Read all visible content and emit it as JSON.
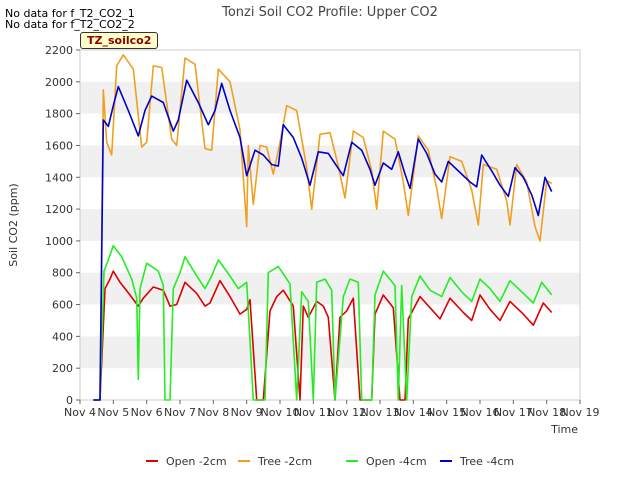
{
  "notices": [
    "No data for f_T2_CO2_1",
    "No data for f_T2_CO2_2"
  ],
  "tag_label": "TZ_soilco2",
  "chart_data": {
    "type": "line",
    "title": "Tonzi Soil CO2 Profile: Upper CO2",
    "xlabel": "Time",
    "ylabel": "Soil CO2 (ppm)",
    "x_tick_labels": [
      "Nov 4",
      "Nov 5",
      "Nov 6",
      "Nov 7",
      "Nov 8",
      "Nov 9",
      "Nov 10",
      "Nov 11",
      "Nov 12",
      "Nov 13",
      "Nov 14",
      "Nov 15",
      "Nov 16",
      "Nov 17",
      "Nov 18",
      "Nov 19"
    ],
    "xlim": [
      4,
      19
    ],
    "ylim": [
      0,
      2200
    ],
    "y_ticks": [
      0,
      200,
      400,
      600,
      800,
      1000,
      1200,
      1400,
      1600,
      1800,
      2000,
      2200
    ],
    "grid": true,
    "legend_position": "bottom",
    "x_unit": "day of November",
    "series": [
      {
        "name": "Open -2cm",
        "color": "#dd0000",
        "points": [
          [
            4.4,
            0
          ],
          [
            4.6,
            0
          ],
          [
            4.75,
            700
          ],
          [
            4.9,
            760
          ],
          [
            5.0,
            810
          ],
          [
            5.2,
            740
          ],
          [
            5.5,
            660
          ],
          [
            5.75,
            590
          ],
          [
            5.9,
            640
          ],
          [
            6.2,
            710
          ],
          [
            6.5,
            690
          ],
          [
            6.7,
            590
          ],
          [
            6.9,
            600
          ],
          [
            7.15,
            740
          ],
          [
            7.5,
            670
          ],
          [
            7.75,
            590
          ],
          [
            7.9,
            610
          ],
          [
            8.2,
            750
          ],
          [
            8.5,
            650
          ],
          [
            8.8,
            540
          ],
          [
            9.0,
            570
          ],
          [
            9.1,
            630
          ],
          [
            9.3,
            0
          ],
          [
            9.5,
            0
          ],
          [
            9.7,
            560
          ],
          [
            9.9,
            650
          ],
          [
            10.1,
            690
          ],
          [
            10.4,
            590
          ],
          [
            10.6,
            0
          ],
          [
            10.7,
            590
          ],
          [
            10.85,
            520
          ],
          [
            11.1,
            620
          ],
          [
            11.3,
            590
          ],
          [
            11.45,
            520
          ],
          [
            11.65,
            0
          ],
          [
            11.8,
            520
          ],
          [
            12.0,
            560
          ],
          [
            12.2,
            640
          ],
          [
            12.4,
            0
          ],
          [
            12.75,
            0
          ],
          [
            12.85,
            540
          ],
          [
            13.1,
            660
          ],
          [
            13.4,
            580
          ],
          [
            13.6,
            0
          ],
          [
            13.75,
            0
          ],
          [
            13.85,
            510
          ],
          [
            14.2,
            650
          ],
          [
            14.5,
            580
          ],
          [
            14.8,
            510
          ],
          [
            15.1,
            640
          ],
          [
            15.5,
            550
          ],
          [
            15.75,
            500
          ],
          [
            16.0,
            660
          ],
          [
            16.3,
            570
          ],
          [
            16.6,
            500
          ],
          [
            16.9,
            620
          ],
          [
            17.3,
            540
          ],
          [
            17.6,
            470
          ],
          [
            17.9,
            610
          ],
          [
            18.15,
            550
          ]
        ]
      },
      {
        "name": "Tree -2cm",
        "color": "#f0a020",
        "points": [
          [
            4.4,
            0
          ],
          [
            4.6,
            0
          ],
          [
            4.7,
            1950
          ],
          [
            4.8,
            1620
          ],
          [
            4.95,
            1540
          ],
          [
            5.1,
            2100
          ],
          [
            5.3,
            2170
          ],
          [
            5.6,
            2080
          ],
          [
            5.85,
            1590
          ],
          [
            6.0,
            1620
          ],
          [
            6.2,
            2100
          ],
          [
            6.45,
            2090
          ],
          [
            6.75,
            1640
          ],
          [
            6.9,
            1600
          ],
          [
            7.15,
            2150
          ],
          [
            7.45,
            2110
          ],
          [
            7.75,
            1580
          ],
          [
            7.95,
            1570
          ],
          [
            8.15,
            2080
          ],
          [
            8.5,
            2000
          ],
          [
            8.8,
            1700
          ],
          [
            9.0,
            1090
          ],
          [
            9.05,
            1600
          ],
          [
            9.2,
            1230
          ],
          [
            9.4,
            1600
          ],
          [
            9.6,
            1590
          ],
          [
            9.8,
            1420
          ],
          [
            10.0,
            1620
          ],
          [
            10.2,
            1850
          ],
          [
            10.5,
            1820
          ],
          [
            10.8,
            1460
          ],
          [
            10.95,
            1200
          ],
          [
            11.2,
            1670
          ],
          [
            11.5,
            1680
          ],
          [
            11.75,
            1470
          ],
          [
            11.95,
            1270
          ],
          [
            12.2,
            1690
          ],
          [
            12.5,
            1650
          ],
          [
            12.75,
            1440
          ],
          [
            12.9,
            1200
          ],
          [
            13.1,
            1690
          ],
          [
            13.45,
            1640
          ],
          [
            13.7,
            1370
          ],
          [
            13.85,
            1160
          ],
          [
            14.15,
            1660
          ],
          [
            14.45,
            1570
          ],
          [
            14.7,
            1330
          ],
          [
            14.85,
            1140
          ],
          [
            15.1,
            1530
          ],
          [
            15.45,
            1500
          ],
          [
            15.75,
            1320
          ],
          [
            15.95,
            1100
          ],
          [
            16.1,
            1480
          ],
          [
            16.5,
            1450
          ],
          [
            16.8,
            1250
          ],
          [
            16.9,
            1100
          ],
          [
            17.1,
            1480
          ],
          [
            17.4,
            1370
          ],
          [
            17.65,
            1090
          ],
          [
            17.8,
            1000
          ],
          [
            18.0,
            1380
          ],
          [
            18.15,
            1360
          ]
        ]
      },
      {
        "name": "Open -4cm",
        "color": "#22ee22",
        "points": [
          [
            4.4,
            0
          ],
          [
            4.6,
            0
          ],
          [
            4.72,
            810
          ],
          [
            4.85,
            880
          ],
          [
            5.0,
            970
          ],
          [
            5.25,
            900
          ],
          [
            5.55,
            760
          ],
          [
            5.7,
            640
          ],
          [
            5.75,
            130
          ],
          [
            5.8,
            700
          ],
          [
            6.0,
            860
          ],
          [
            6.35,
            810
          ],
          [
            6.5,
            720
          ],
          [
            6.55,
            0
          ],
          [
            6.7,
            0
          ],
          [
            6.8,
            700
          ],
          [
            7.0,
            800
          ],
          [
            7.15,
            900
          ],
          [
            7.5,
            780
          ],
          [
            7.75,
            700
          ],
          [
            7.95,
            780
          ],
          [
            8.15,
            880
          ],
          [
            8.5,
            780
          ],
          [
            8.75,
            700
          ],
          [
            9.0,
            740
          ],
          [
            9.2,
            0
          ],
          [
            9.55,
            0
          ],
          [
            9.65,
            800
          ],
          [
            9.95,
            840
          ],
          [
            10.3,
            730
          ],
          [
            10.5,
            0
          ],
          [
            10.65,
            680
          ],
          [
            10.85,
            620
          ],
          [
            11.0,
            0
          ],
          [
            11.1,
            740
          ],
          [
            11.35,
            760
          ],
          [
            11.55,
            690
          ],
          [
            11.65,
            0
          ],
          [
            11.9,
            650
          ],
          [
            12.1,
            760
          ],
          [
            12.35,
            740
          ],
          [
            12.45,
            0
          ],
          [
            12.75,
            0
          ],
          [
            12.85,
            660
          ],
          [
            13.1,
            810
          ],
          [
            13.45,
            720
          ],
          [
            13.55,
            0
          ],
          [
            13.65,
            720
          ],
          [
            13.8,
            0
          ],
          [
            13.95,
            650
          ],
          [
            14.2,
            780
          ],
          [
            14.5,
            690
          ],
          [
            14.85,
            650
          ],
          [
            15.1,
            770
          ],
          [
            15.45,
            680
          ],
          [
            15.75,
            620
          ],
          [
            16.0,
            760
          ],
          [
            16.3,
            700
          ],
          [
            16.6,
            620
          ],
          [
            16.9,
            750
          ],
          [
            17.25,
            680
          ],
          [
            17.6,
            610
          ],
          [
            17.85,
            740
          ],
          [
            18.15,
            660
          ]
        ]
      },
      {
        "name": "Tree -4cm",
        "color": "#0000cc",
        "points": [
          [
            4.4,
            0
          ],
          [
            4.6,
            0
          ],
          [
            4.7,
            1760
          ],
          [
            4.85,
            1720
          ],
          [
            5.0,
            1850
          ],
          [
            5.15,
            1970
          ],
          [
            5.45,
            1820
          ],
          [
            5.75,
            1660
          ],
          [
            5.95,
            1820
          ],
          [
            6.15,
            1910
          ],
          [
            6.5,
            1870
          ],
          [
            6.8,
            1690
          ],
          [
            6.95,
            1760
          ],
          [
            7.2,
            2010
          ],
          [
            7.55,
            1870
          ],
          [
            7.85,
            1730
          ],
          [
            8.05,
            1820
          ],
          [
            8.25,
            1990
          ],
          [
            8.5,
            1820
          ],
          [
            8.8,
            1650
          ],
          [
            9.0,
            1410
          ],
          [
            9.25,
            1570
          ],
          [
            9.5,
            1540
          ],
          [
            9.75,
            1480
          ],
          [
            9.95,
            1470
          ],
          [
            10.1,
            1730
          ],
          [
            10.4,
            1650
          ],
          [
            10.65,
            1520
          ],
          [
            10.9,
            1350
          ],
          [
            11.15,
            1560
          ],
          [
            11.45,
            1550
          ],
          [
            11.7,
            1470
          ],
          [
            11.9,
            1410
          ],
          [
            12.15,
            1620
          ],
          [
            12.45,
            1570
          ],
          [
            12.7,
            1450
          ],
          [
            12.85,
            1350
          ],
          [
            13.1,
            1490
          ],
          [
            13.35,
            1450
          ],
          [
            13.55,
            1560
          ],
          [
            13.75,
            1420
          ],
          [
            13.9,
            1330
          ],
          [
            14.15,
            1640
          ],
          [
            14.4,
            1550
          ],
          [
            14.65,
            1420
          ],
          [
            14.85,
            1370
          ],
          [
            15.05,
            1500
          ],
          [
            15.4,
            1430
          ],
          [
            15.7,
            1370
          ],
          [
            15.9,
            1340
          ],
          [
            16.05,
            1540
          ],
          [
            16.35,
            1440
          ],
          [
            16.6,
            1350
          ],
          [
            16.85,
            1280
          ],
          [
            17.05,
            1460
          ],
          [
            17.3,
            1400
          ],
          [
            17.55,
            1290
          ],
          [
            17.75,
            1160
          ],
          [
            17.95,
            1400
          ],
          [
            18.15,
            1310
          ]
        ]
      }
    ]
  }
}
